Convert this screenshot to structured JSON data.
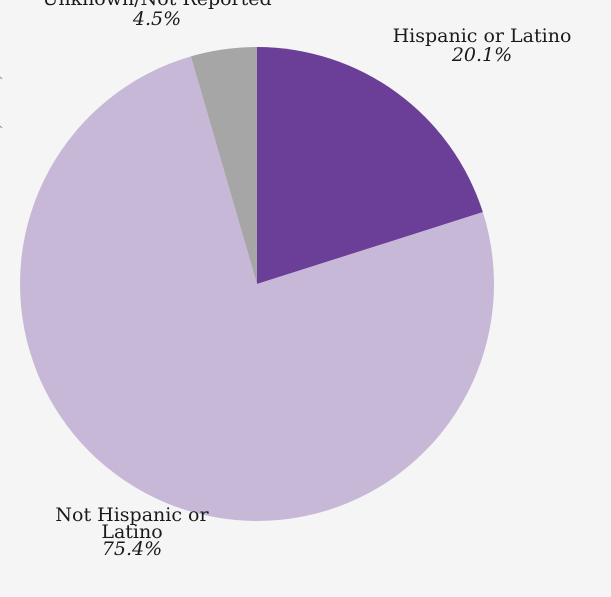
{
  "chart_data": {
    "type": "pie",
    "start_angle_deg": 0,
    "direction": "clockwise",
    "slices": [
      {
        "label": [
          "Hispanic or Latino"
        ],
        "value": 20.1,
        "value_label": "20.1%",
        "color": "#6b3f97"
      },
      {
        "label": [
          "Not Hispanic or",
          "Latino"
        ],
        "value": 75.4,
        "value_label": "75.4%",
        "color": "#c8b8d8"
      },
      {
        "label": [
          "Unknown/Not Reported"
        ],
        "value": 4.5,
        "value_label": "4.5%",
        "color": "#a6a6a6"
      }
    ],
    "legend": "none"
  }
}
